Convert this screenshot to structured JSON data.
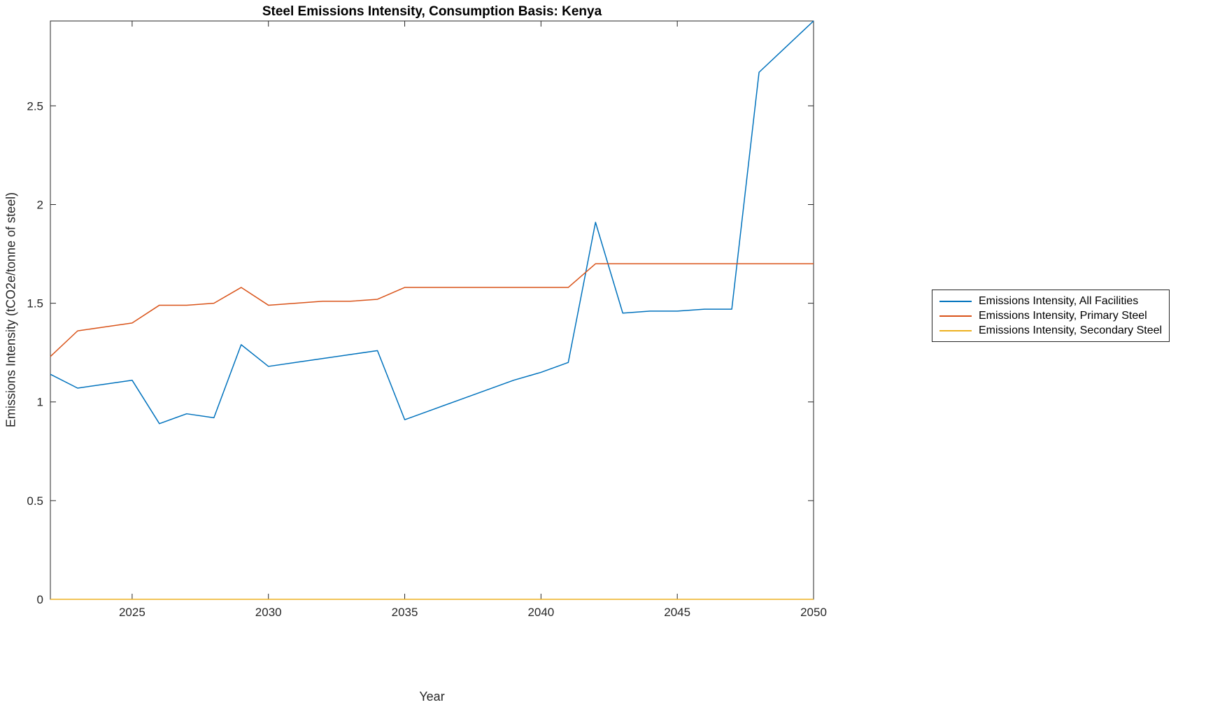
{
  "chart_data": {
    "type": "line",
    "title": "Steel Emissions Intensity, Consumption Basis: Kenya",
    "xlabel": "Year",
    "ylabel": "Emissions Intensity (tCO2e/tonne of steel)",
    "xlim": [
      2022,
      2050
    ],
    "ylim": [
      0,
      2.93
    ],
    "grid": false,
    "legend_position": "right-outside",
    "axis_color": "#262626",
    "background_color": "#ffffff",
    "xticks": {
      "values": [
        2025,
        2030,
        2035,
        2040,
        2045,
        2050
      ],
      "labels": [
        "2025",
        "2030",
        "2035",
        "2040",
        "2045",
        "2050"
      ]
    },
    "yticks": {
      "values": [
        0,
        0.5,
        1,
        1.5,
        2,
        2.5
      ],
      "labels": [
        "0",
        "0.5",
        "1",
        "1.5",
        "2",
        "2.5"
      ]
    },
    "x": [
      2022,
      2023,
      2024,
      2025,
      2026,
      2027,
      2028,
      2029,
      2030,
      2031,
      2032,
      2033,
      2034,
      2035,
      2036,
      2037,
      2038,
      2039,
      2040,
      2041,
      2042,
      2043,
      2044,
      2045,
      2046,
      2047,
      2048,
      2049,
      2050
    ],
    "series": [
      {
        "name": "Emissions Intensity, All Facilities",
        "color": "#0072BD",
        "values": [
          1.14,
          1.07,
          1.09,
          1.11,
          0.89,
          0.94,
          0.92,
          1.29,
          1.18,
          1.2,
          1.22,
          1.24,
          1.26,
          0.91,
          0.96,
          1.01,
          1.06,
          1.11,
          1.15,
          1.2,
          1.91,
          1.45,
          1.46,
          1.46,
          1.47,
          1.47,
          2.67,
          2.8,
          2.93
        ]
      },
      {
        "name": "Emissions Intensity, Primary Steel",
        "color": "#D95319",
        "values": [
          1.23,
          1.36,
          1.38,
          1.4,
          1.49,
          1.49,
          1.5,
          1.58,
          1.49,
          1.5,
          1.51,
          1.51,
          1.52,
          1.58,
          1.58,
          1.58,
          1.58,
          1.58,
          1.58,
          1.58,
          1.7,
          1.7,
          1.7,
          1.7,
          1.7,
          1.7,
          1.7,
          1.7,
          1.7
        ]
      },
      {
        "name": "Emissions Intensity, Secondary Steel",
        "color": "#EDB120",
        "values": [
          0,
          0,
          0,
          0,
          0,
          0,
          0,
          0,
          0,
          0,
          0,
          0,
          0,
          0,
          0,
          0,
          0,
          0,
          0,
          0,
          0,
          0,
          0,
          0,
          0,
          0,
          0,
          0,
          0
        ]
      }
    ]
  }
}
